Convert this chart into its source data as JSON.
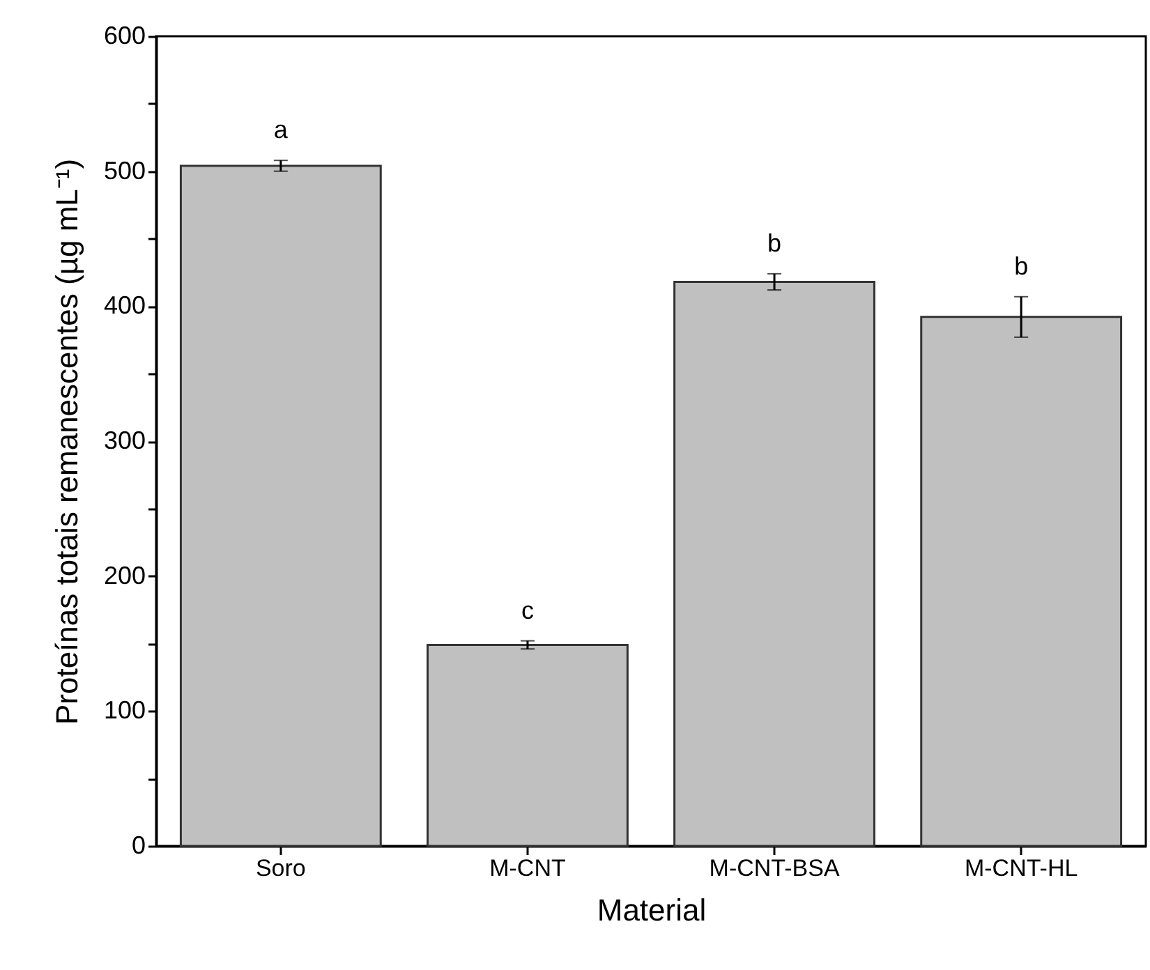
{
  "chart_data": {
    "type": "bar",
    "xlabel": "Material",
    "ylabel": "Proteínas totais remanescentes (µg mL⁻¹)",
    "categories": [
      "Soro",
      "M-CNT",
      "M-CNT-BSA",
      "M-CNT-HL"
    ],
    "values": [
      504,
      149,
      418,
      392
    ],
    "errors": [
      4,
      3,
      6,
      15
    ],
    "color": "#c0c0c0",
    "ylim": [
      0,
      600
    ],
    "yticks": [
      0,
      {
        "value": 50,
        "label": null
      },
      100,
      {
        "value": 150,
        "label": null
      },
      200,
      {
        "value": 250,
        "label": null
      },
      300,
      {
        "value": 350,
        "label": null
      },
      400,
      {
        "value": 450,
        "label": null
      },
      500,
      {
        "value": 550,
        "label": null
      },
      600
    ],
    "annotations": [
      "a",
      "c",
      "b",
      "b"
    ],
    "grid": false
  }
}
